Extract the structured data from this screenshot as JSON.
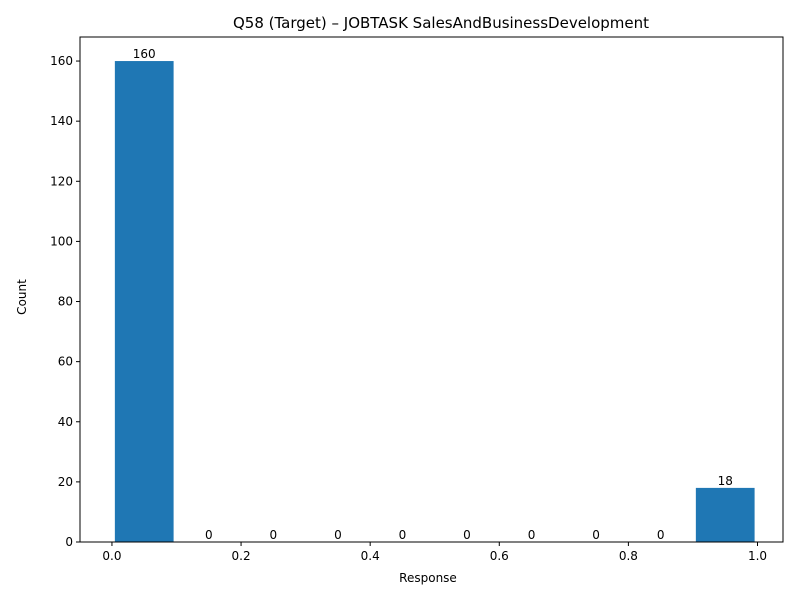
{
  "chart_data": {
    "type": "bar",
    "title": "Q58 (Target) – JOBTASK SalesAndBusinessDevelopment",
    "xlabel": "Response",
    "ylabel": "Count",
    "xlim": [
      -0.0495,
      1.0395
    ],
    "ylim": [
      0,
      168
    ],
    "xticks": [
      0.0,
      0.2,
      0.4,
      0.6,
      0.8,
      1.0
    ],
    "xtick_labels": [
      "0.0",
      "0.2",
      "0.4",
      "0.6",
      "0.8",
      "1.0"
    ],
    "yticks": [
      0,
      20,
      40,
      60,
      80,
      100,
      120,
      140,
      160
    ],
    "yticks_labels": [
      "0",
      "20",
      "40",
      "60",
      "80",
      "100",
      "120",
      "140",
      "160"
    ],
    "bins": [
      {
        "x0": 0.0,
        "x1": 0.1,
        "count": 160,
        "label": "160"
      },
      {
        "x0": 0.1,
        "x1": 0.2,
        "count": 0,
        "label": "0"
      },
      {
        "x0": 0.2,
        "x1": 0.3,
        "count": 0,
        "label": "0"
      },
      {
        "x0": 0.3,
        "x1": 0.4,
        "count": 0,
        "label": "0"
      },
      {
        "x0": 0.4,
        "x1": 0.5,
        "count": 0,
        "label": "0"
      },
      {
        "x0": 0.5,
        "x1": 0.6,
        "count": 0,
        "label": "0"
      },
      {
        "x0": 0.6,
        "x1": 0.7,
        "count": 0,
        "label": "0"
      },
      {
        "x0": 0.7,
        "x1": 0.8,
        "count": 0,
        "label": "0"
      },
      {
        "x0": 0.8,
        "x1": 0.9,
        "count": 0,
        "label": "0"
      },
      {
        "x0": 0.9,
        "x1": 1.0,
        "count": 18,
        "label": "18"
      }
    ],
    "bar_color": "#1f77b4",
    "grid": false,
    "legend": "none"
  }
}
